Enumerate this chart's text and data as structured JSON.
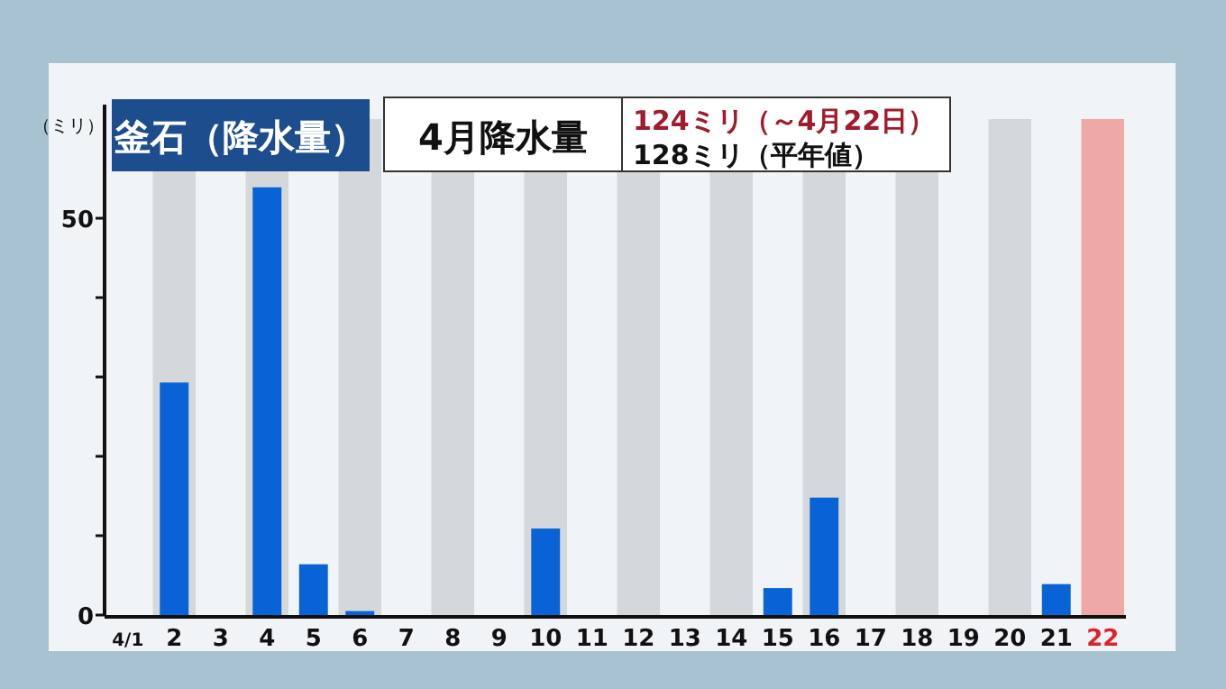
{
  "chart_data": {
    "type": "bar",
    "title": "釜石（降水量）",
    "subtitle": "4月降水量",
    "ylabel": "（ミリ）",
    "annotations": [
      "124ミリ（～4月22日）",
      "128ミリ（平年値）"
    ],
    "categories": [
      "4/1",
      "2",
      "3",
      "4",
      "5",
      "6",
      "7",
      "8",
      "9",
      "10",
      "11",
      "12",
      "13",
      "14",
      "15",
      "16",
      "17",
      "18",
      "19",
      "20",
      "21",
      "22"
    ],
    "values": [
      0,
      29.3,
      0,
      53.9,
      6.4,
      0.5,
      0,
      0,
      0,
      10.9,
      0,
      0,
      0,
      0,
      3.4,
      14.8,
      0,
      0,
      0,
      0,
      3.9,
      null
    ],
    "color": "#0a63d6",
    "ylim": [
      0,
      62.5
    ],
    "yticks": [
      0,
      {
        "value": 10,
        "label": null
      },
      {
        "value": 20,
        "label": null
      },
      {
        "value": 30,
        "label": null
      },
      {
        "value": 40,
        "label": null
      },
      50
    ],
    "bands": [
      {
        "axis": "x",
        "from": "2",
        "to": "2",
        "color": "#d5d8da"
      },
      {
        "axis": "x",
        "from": "4",
        "to": "4",
        "color": "#d5d8da"
      },
      {
        "axis": "x",
        "from": "6",
        "to": "6",
        "color": "#d5d8da"
      },
      {
        "axis": "x",
        "from": "8",
        "to": "8",
        "color": "#d5d8da"
      },
      {
        "axis": "x",
        "from": "10",
        "to": "10",
        "color": "#d5d8da"
      },
      {
        "axis": "x",
        "from": "12",
        "to": "12",
        "color": "#d5d8da"
      },
      {
        "axis": "x",
        "from": "14",
        "to": "14",
        "color": "#d5d8da"
      },
      {
        "axis": "x",
        "from": "16",
        "to": "16",
        "color": "#d5d8da"
      },
      {
        "axis": "x",
        "from": "18",
        "to": "18",
        "color": "#d5d8da"
      },
      {
        "axis": "x",
        "from": "20",
        "to": "20",
        "color": "#d5d8da"
      },
      {
        "axis": "x",
        "from": "22",
        "to": "22",
        "color": "#eea9a6"
      }
    ]
  }
}
